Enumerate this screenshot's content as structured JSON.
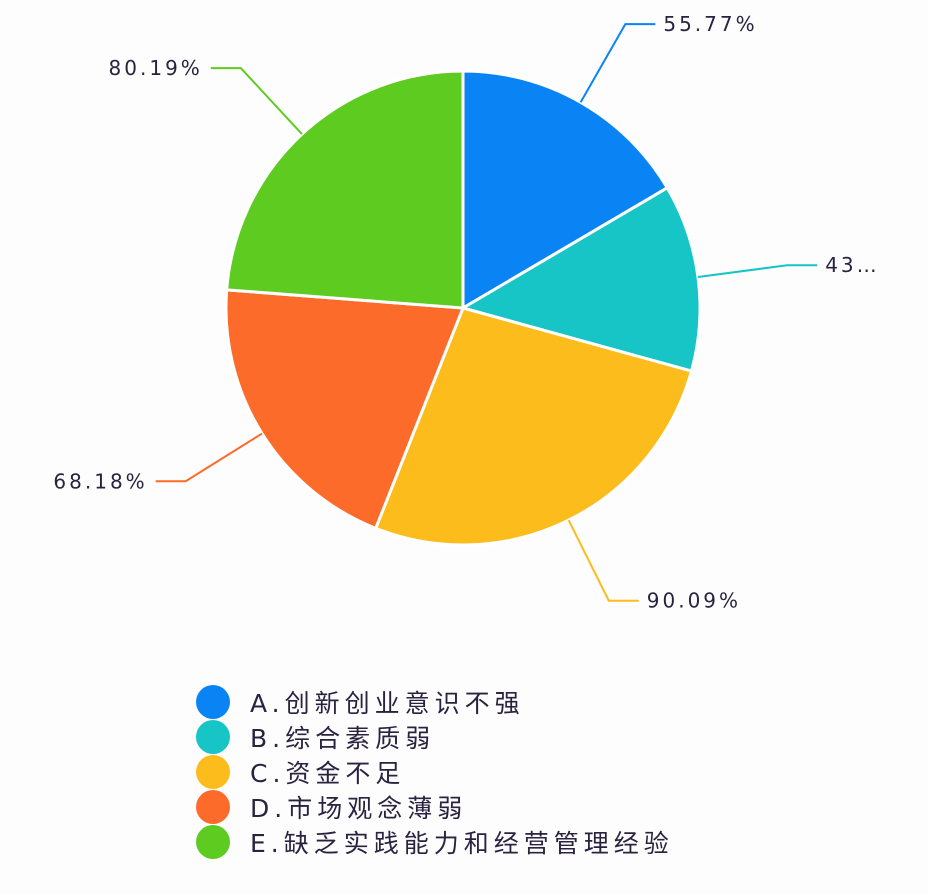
{
  "chart_data": {
    "type": "pie",
    "start_angle": "top, clockwise",
    "slices": [
      {
        "category": "A.创新创业意识不强",
        "value": 55.77,
        "label": "55.77%",
        "color": "#0a84f5"
      },
      {
        "category": "B.综合素质弱",
        "value": 43,
        "label": "43…",
        "color": "#17c4c6"
      },
      {
        "category": "C.资金不足",
        "value": 90.09,
        "label": "90.09%",
        "color": "#fcbc1c"
      },
      {
        "category": "D.市场观念薄弱",
        "value": 68.18,
        "label": "68.18%",
        "color": "#fd6b2a"
      },
      {
        "category": "E.缺乏实践能力和经营管理经验",
        "value": 80.19,
        "label": "80.19%",
        "color": "#5dcb1f"
      }
    ],
    "legend_placement": "bottom"
  }
}
